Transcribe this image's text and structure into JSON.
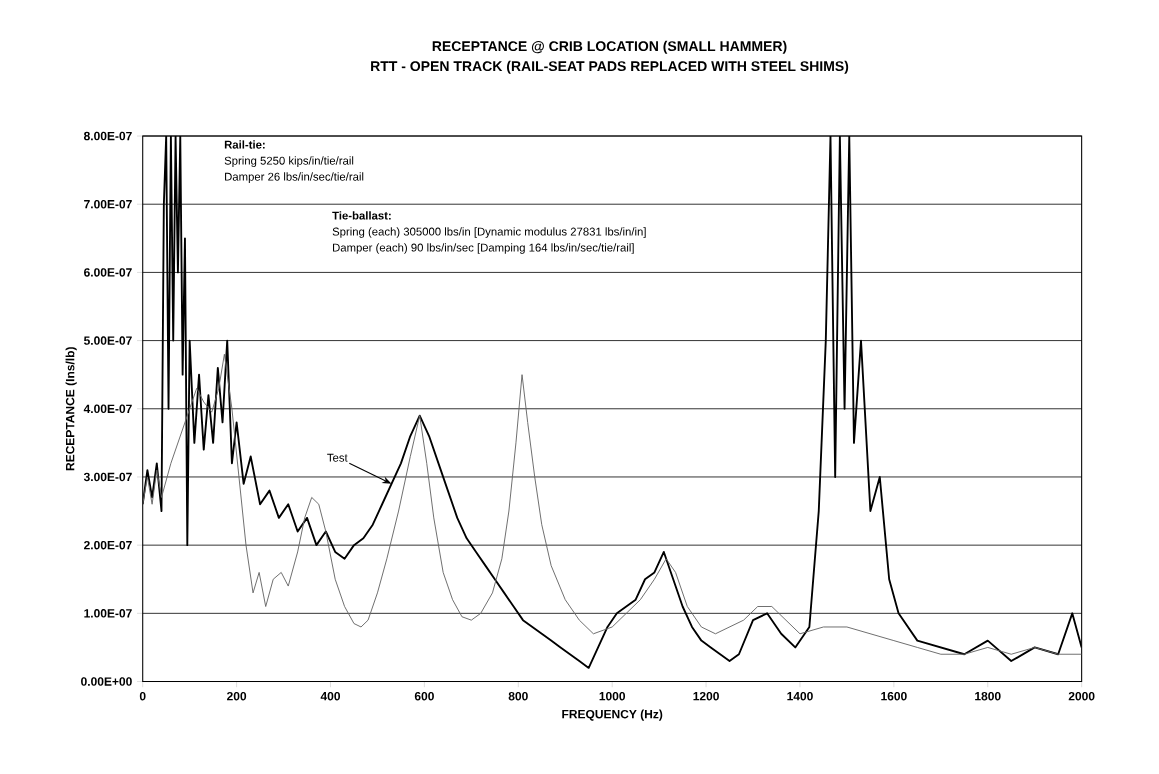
{
  "chart_data": {
    "type": "line",
    "title": "RECEPTANCE @ CRIB LOCATION (SMALL HAMMER)",
    "subtitle": "RTT - OPEN TRACK (RAIL-SEAT PADS REPLACED WITH STEEL SHIMS)",
    "xlabel": "FREQUENCY (Hz)",
    "ylabel": "RECEPTANCE (Ins/lb)",
    "xlim": [
      0,
      2000
    ],
    "xticks": [
      0,
      200,
      400,
      600,
      800,
      1000,
      1200,
      1400,
      1600,
      1800,
      2000
    ],
    "ylim": [
      0,
      8e-07
    ],
    "yticks": [
      {
        "value": 0,
        "label": "0.00E+00"
      },
      {
        "value": 1e-07,
        "label": "1.00E-07"
      },
      {
        "value": 2e-07,
        "label": "2.00E-07"
      },
      {
        "value": 3e-07,
        "label": "3.00E-07"
      },
      {
        "value": 4e-07,
        "label": "4.00E-07"
      },
      {
        "value": 5e-07,
        "label": "5.00E-07"
      },
      {
        "value": 6e-07,
        "label": "6.00E-07"
      },
      {
        "value": 7e-07,
        "label": "7.00E-07"
      },
      {
        "value": 8e-07,
        "label": "8.00E-07"
      }
    ],
    "grid": "y",
    "annotations": [
      "Rail-tie:",
      "Spring 5250 kips/in/tie/rail",
      "Damper 26 lbs/in/sec/tie/rail",
      "Tie-ballast:",
      "Spring (each) 305000 lbs/in [Dynamic modulus 27831 lbs/in/in]",
      "Damper (each) 90 lbs/in/sec [Damping 164 lbs/in/sec/tie/rail]"
    ],
    "series": [
      {
        "name": "Test",
        "color": "#000000",
        "x": [
          0,
          10,
          20,
          30,
          40,
          45,
          50,
          55,
          60,
          65,
          70,
          75,
          80,
          85,
          90,
          95,
          100,
          110,
          120,
          130,
          140,
          150,
          160,
          170,
          180,
          190,
          200,
          215,
          230,
          250,
          270,
          290,
          310,
          330,
          350,
          370,
          390,
          410,
          430,
          450,
          470,
          490,
          510,
          530,
          550,
          570,
          590,
          610,
          630,
          650,
          670,
          690,
          710,
          730,
          750,
          770,
          790,
          810,
          830,
          850,
          870,
          890,
          910,
          930,
          950,
          970,
          990,
          1010,
          1030,
          1050,
          1070,
          1090,
          1110,
          1130,
          1150,
          1170,
          1190,
          1210,
          1230,
          1250,
          1270,
          1300,
          1330,
          1360,
          1390,
          1420,
          1440,
          1455,
          1465,
          1475,
          1485,
          1495,
          1505,
          1515,
          1530,
          1550,
          1570,
          1590,
          1610,
          1650,
          1700,
          1750,
          1800,
          1850,
          1900,
          1950,
          1980,
          2000
        ],
        "values": [
          2.6e-07,
          3.1e-07,
          2.7e-07,
          3.2e-07,
          2.5e-07,
          7e-07,
          8e-07,
          4e-07,
          8e-07,
          5e-07,
          8e-07,
          6e-07,
          8e-07,
          4.5e-07,
          6.5e-07,
          2e-07,
          5e-07,
          3.5e-07,
          4.5e-07,
          3.4e-07,
          4.2e-07,
          3.5e-07,
          4.6e-07,
          3.8e-07,
          5e-07,
          3.2e-07,
          3.8e-07,
          2.9e-07,
          3.3e-07,
          2.6e-07,
          2.8e-07,
          2.4e-07,
          2.6e-07,
          2.2e-07,
          2.4e-07,
          2e-07,
          2.2e-07,
          1.9e-07,
          1.8e-07,
          2e-07,
          2.1e-07,
          2.3e-07,
          2.6e-07,
          2.9e-07,
          3.2e-07,
          3.6e-07,
          3.9e-07,
          3.6e-07,
          3.2e-07,
          2.8e-07,
          2.4e-07,
          2.1e-07,
          1.9e-07,
          1.7e-07,
          1.5e-07,
          1.3e-07,
          1.1e-07,
          9e-08,
          8e-08,
          7e-08,
          6e-08,
          5e-08,
          4e-08,
          3e-08,
          2e-08,
          5e-08,
          8e-08,
          1e-07,
          1.1e-07,
          1.2e-07,
          1.5e-07,
          1.6e-07,
          1.9e-07,
          1.5e-07,
          1.1e-07,
          8e-08,
          6e-08,
          5e-08,
          4e-08,
          3e-08,
          4e-08,
          9e-08,
          1e-07,
          7e-08,
          5e-08,
          8e-08,
          2.5e-07,
          5e-07,
          8e-07,
          3e-07,
          8e-07,
          4e-07,
          8e-07,
          3.5e-07,
          5e-07,
          2.5e-07,
          3e-07,
          1.5e-07,
          1e-07,
          6e-08,
          5e-08,
          4e-08,
          6e-08,
          3e-08,
          5e-08,
          4e-08,
          1e-07,
          5e-08
        ]
      },
      {
        "color": "#666666",
        "x": [
          0,
          10,
          20,
          30,
          40,
          60,
          80,
          100,
          115,
          130,
          147,
          162,
          174,
          190,
          205,
          220,
          235,
          248,
          262,
          278,
          295,
          310,
          330,
          345,
          360,
          375,
          390,
          410,
          430,
          450,
          465,
          480,
          500,
          520,
          545,
          570,
          590,
          605,
          620,
          640,
          660,
          680,
          700,
          720,
          745,
          765,
          780,
          795,
          808,
          820,
          835,
          850,
          870,
          900,
          930,
          960,
          1000,
          1030,
          1060,
          1090,
          1115,
          1135,
          1160,
          1190,
          1220,
          1250,
          1280,
          1310,
          1340,
          1370,
          1400,
          1450,
          1500,
          1550,
          1600,
          1650,
          1700,
          1750,
          1800,
          1850,
          1900,
          1950,
          2000
        ],
        "values": [
          2.6e-07,
          3e-07,
          2.6e-07,
          3.1e-07,
          2.7e-07,
          3.2e-07,
          3.6e-07,
          4e-07,
          4.3e-07,
          4.1e-07,
          3.95e-07,
          4.3e-07,
          4.8e-07,
          4e-07,
          3e-07,
          2e-07,
          1.3e-07,
          1.6e-07,
          1.1e-07,
          1.5e-07,
          1.6e-07,
          1.4e-07,
          1.9e-07,
          2.4e-07,
          2.7e-07,
          2.6e-07,
          2.2e-07,
          1.5e-07,
          1.1e-07,
          8.5e-08,
          8e-08,
          9e-08,
          1.3e-07,
          1.8e-07,
          2.5e-07,
          3.3e-07,
          3.9e-07,
          3.2e-07,
          2.4e-07,
          1.6e-07,
          1.2e-07,
          9.5e-08,
          9e-08,
          1e-07,
          1.3e-07,
          1.8e-07,
          2.5e-07,
          3.5e-07,
          4.5e-07,
          3.8e-07,
          3e-07,
          2.3e-07,
          1.7e-07,
          1.2e-07,
          9e-08,
          7e-08,
          8e-08,
          1e-07,
          1.2e-07,
          1.5e-07,
          1.8e-07,
          1.6e-07,
          1.1e-07,
          8e-08,
          7e-08,
          8e-08,
          9e-08,
          1.1e-07,
          1.1e-07,
          9e-08,
          7e-08,
          8e-08,
          8e-08,
          7e-08,
          6e-08,
          5e-08,
          4e-08,
          4e-08,
          5e-08,
          4e-08,
          5e-08,
          4e-08,
          4e-08
        ]
      }
    ]
  }
}
